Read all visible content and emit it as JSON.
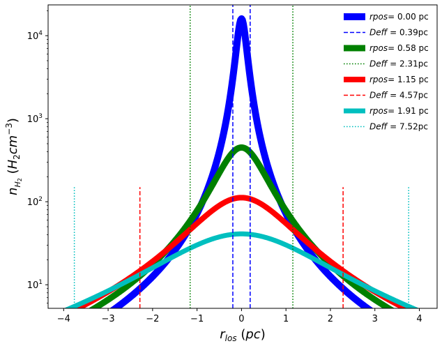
{
  "chart_data": {
    "type": "line",
    "xlabel": "r_los (pc)",
    "ylabel": "n_H2 (H2 cm^-3)",
    "yscale": "log",
    "xlim": [
      -4.35,
      4.4
    ],
    "ylim": [
      5.2,
      23500
    ],
    "grid": false,
    "legend_position": "top-right",
    "x_ticks": [
      -4,
      -3,
      -2,
      -1,
      0,
      1,
      2,
      3,
      4
    ],
    "x_tick_labels": [
      "−4",
      "−3",
      "−2",
      "−1",
      "0",
      "1",
      "2",
      "3",
      "4"
    ],
    "y_ticks": [
      10,
      100,
      1000,
      10000
    ],
    "y_tick_labels": [
      {
        "base": "10",
        "exp": "1"
      },
      {
        "base": "10",
        "exp": "2"
      },
      {
        "base": "10",
        "exp": "3"
      },
      {
        "base": "10",
        "exp": "4"
      }
    ],
    "series": [
      {
        "name": "rpos= 0.00 pc",
        "legend_label": "rpos",
        "legend_value": "= 0.00 pc",
        "color": "#0000ff",
        "x_range": [
          -4,
          4
        ],
        "peak": 16000,
        "core_radius": 0.12,
        "profile_power": 1.27,
        "Deff": 0.39
      },
      {
        "name": "rpos= 0.58 pc",
        "legend_label": "rpos",
        "legend_value": "= 0.58 pc",
        "color": "#008000",
        "x_range": [
          -4,
          4
        ],
        "peak": 450,
        "core_radius": 0.58,
        "profile_power": 1.27,
        "Deff": 2.31
      },
      {
        "name": "rpos= 1.15 pc",
        "legend_label": "rpos",
        "legend_value": "= 1.15 pc",
        "color": "#ff0000",
        "x_range": [
          -4,
          4
        ],
        "peak": 112,
        "core_radius": 1.15,
        "profile_power": 1.27,
        "Deff": 4.57
      },
      {
        "name": "rpos= 1.91 pc",
        "legend_label": "rpos",
        "legend_value": "= 1.91 pc",
        "color": "#00bfbf",
        "x_range": [
          -4,
          4
        ],
        "peak": 41,
        "core_radius": 1.91,
        "profile_power": 1.27,
        "Deff": 7.52
      }
    ],
    "deff_lines": [
      {
        "name": "Deff = 0.39pc",
        "legend_label": "Deff",
        "legend_value": " = 0.39pc",
        "color": "#0000ff",
        "style": "dashed",
        "x": [
          -0.195,
          0.195
        ],
        "y_top": "full"
      },
      {
        "name": "Deff = 2.31pc",
        "legend_label": "Deff",
        "legend_value": " = 2.31pc",
        "color": "#008000",
        "style": "dotted",
        "x": [
          -1.155,
          1.155
        ],
        "y_top": "full"
      },
      {
        "name": "Deff = 4.57pc",
        "legend_label": "Deff",
        "legend_value": " = 4.57pc",
        "color": "#ff0000",
        "style": "dashed",
        "x": [
          -2.285,
          2.285
        ],
        "y_top": 150
      },
      {
        "name": "Deff = 7.52pc",
        "legend_label": "Deff",
        "legend_value": " = 7.52pc",
        "color": "#00bfbf",
        "style": "dotted",
        "x": [
          -3.76,
          3.76
        ],
        "y_top": 150
      }
    ]
  }
}
